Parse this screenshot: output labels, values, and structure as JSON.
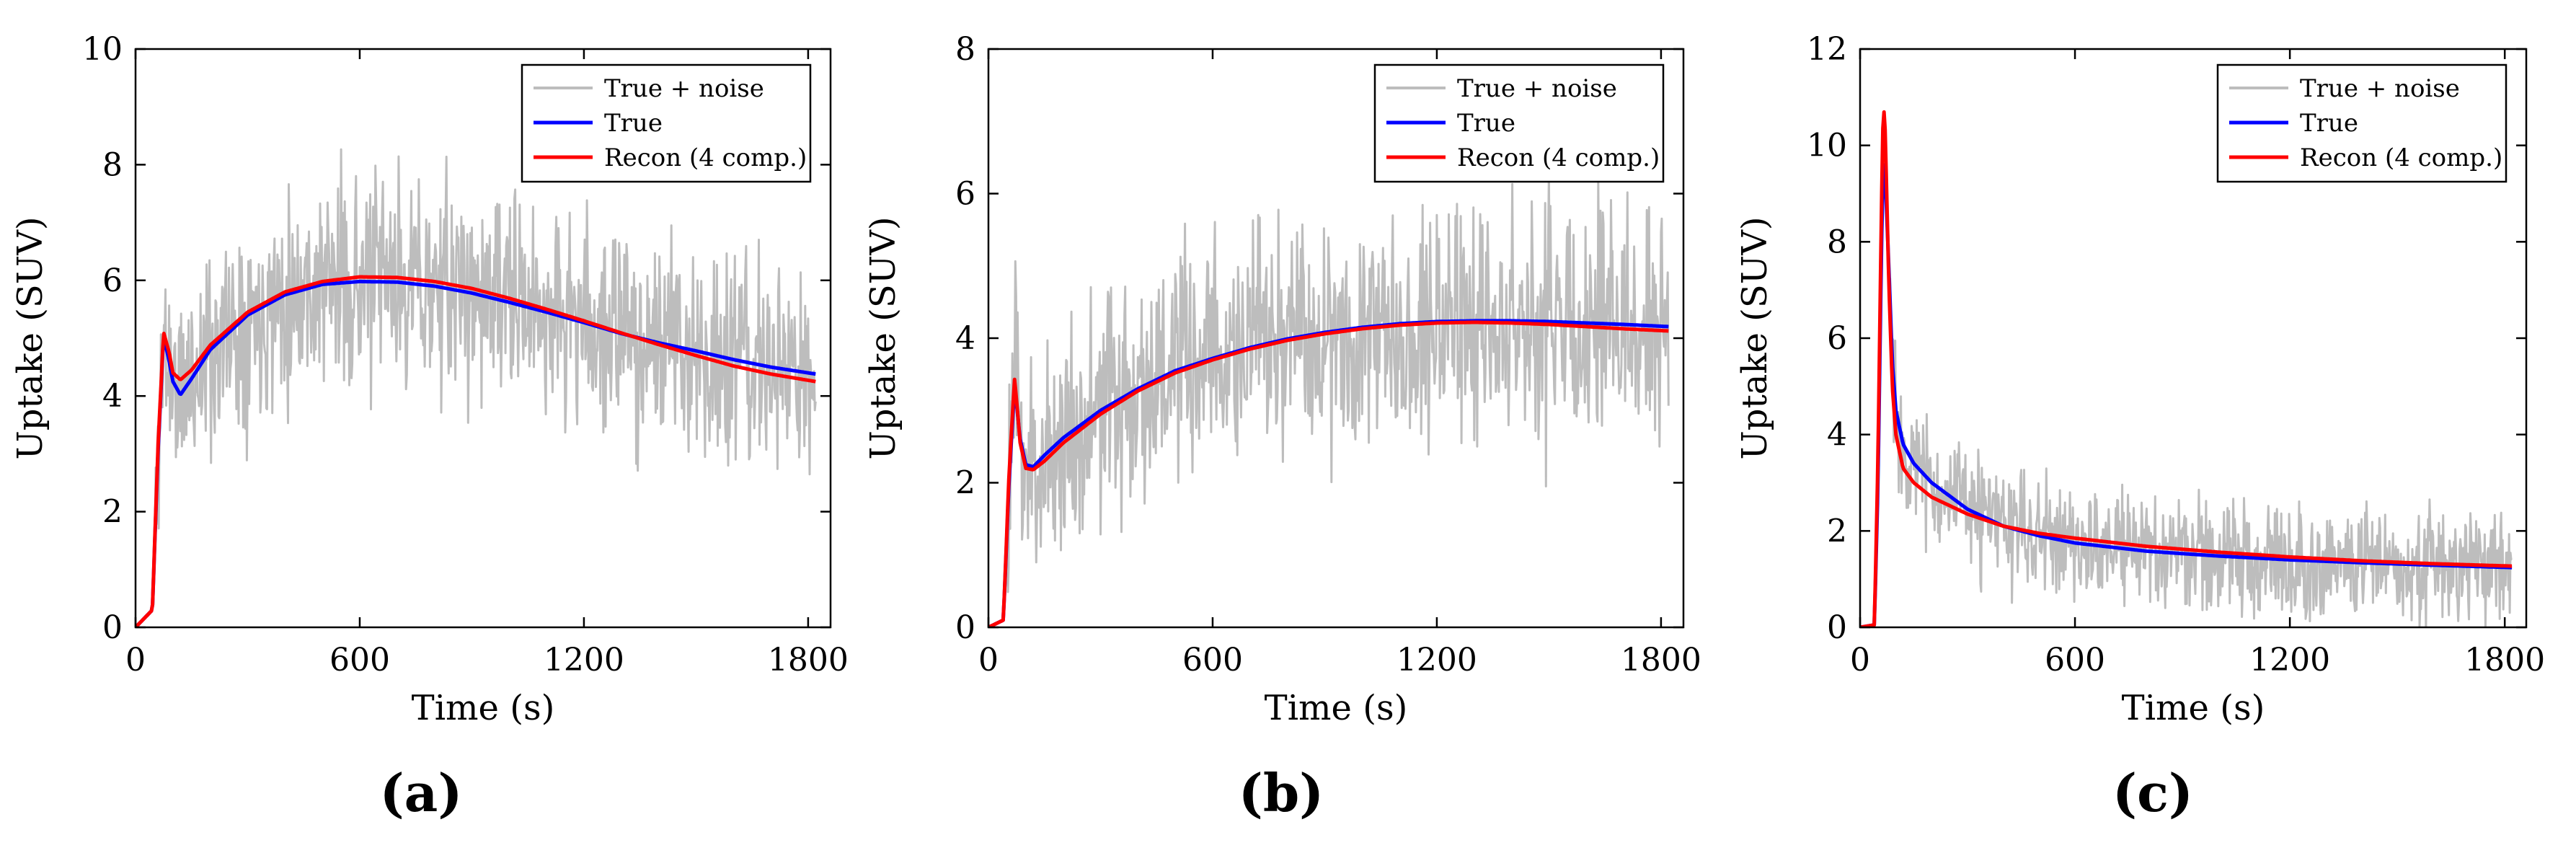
{
  "colors": {
    "noise": "#bdbdbd",
    "true": "#0000ff",
    "recon": "#ff0000",
    "axis": "#000000",
    "background": "#ffffff"
  },
  "captions": [
    "(a)",
    "(b)",
    "(c)"
  ],
  "chart_data": [
    {
      "type": "line",
      "title": "",
      "xlabel": "Time (s)",
      "ylabel": "Uptake (SUV)",
      "xlim": [
        0,
        1860
      ],
      "ylim": [
        0,
        10
      ],
      "xticks": [
        0,
        600,
        1200,
        1800
      ],
      "yticks": [
        0,
        2,
        4,
        6,
        8,
        10
      ],
      "legend_position": "top-right",
      "series": [
        {
          "name": "True + noise",
          "color": "#bdbdbd",
          "noise_amplitude": 1.1,
          "seed": 11,
          "x": [
            0,
            45,
            60,
            75,
            90,
            100,
            120,
            150,
            200,
            300,
            400,
            500,
            600,
            700,
            800,
            900,
            1000,
            1100,
            1200,
            1300,
            1400,
            1500,
            1600,
            1700,
            1820
          ],
          "y": [
            0,
            0.3,
            3.0,
            5.0,
            4.6,
            4.2,
            4.0,
            4.3,
            4.8,
            5.4,
            5.75,
            5.93,
            5.98,
            5.97,
            5.9,
            5.78,
            5.62,
            5.45,
            5.27,
            5.08,
            4.9,
            4.75,
            4.6,
            4.45,
            4.3
          ]
        },
        {
          "name": "True",
          "color": "#0000ff",
          "x": [
            0,
            45,
            60,
            75,
            90,
            100,
            120,
            150,
            200,
            300,
            400,
            500,
            600,
            700,
            800,
            900,
            1000,
            1100,
            1200,
            1300,
            1400,
            1500,
            1600,
            1700,
            1820
          ],
          "y": [
            0,
            0.3,
            3.0,
            5.05,
            4.6,
            4.25,
            4.02,
            4.3,
            4.8,
            5.4,
            5.75,
            5.93,
            5.98,
            5.97,
            5.9,
            5.78,
            5.62,
            5.45,
            5.27,
            5.08,
            4.92,
            4.78,
            4.63,
            4.5,
            4.38
          ]
        },
        {
          "name": "Recon (4 comp.)",
          "color": "#ff0000",
          "x": [
            0,
            45,
            60,
            75,
            90,
            100,
            120,
            150,
            200,
            300,
            400,
            500,
            600,
            700,
            800,
            900,
            1000,
            1100,
            1200,
            1300,
            1400,
            1500,
            1600,
            1700,
            1820
          ],
          "y": [
            0,
            0.3,
            3.1,
            5.1,
            4.75,
            4.4,
            4.28,
            4.45,
            4.88,
            5.45,
            5.8,
            5.98,
            6.06,
            6.05,
            5.98,
            5.86,
            5.69,
            5.5,
            5.3,
            5.09,
            4.89,
            4.7,
            4.52,
            4.38,
            4.25
          ]
        }
      ]
    },
    {
      "type": "line",
      "title": "",
      "xlabel": "Time (s)",
      "ylabel": "Uptake (SUV)",
      "xlim": [
        0,
        1860
      ],
      "ylim": [
        0,
        8
      ],
      "xticks": [
        0,
        600,
        1200,
        1800
      ],
      "yticks": [
        0,
        2,
        4,
        6,
        8
      ],
      "legend_position": "top-right",
      "series": [
        {
          "name": "True + noise",
          "color": "#bdbdbd",
          "noise_amplitude": 1.0,
          "seed": 23,
          "x": [
            0,
            40,
            55,
            70,
            85,
            100,
            120,
            150,
            200,
            300,
            400,
            500,
            600,
            700,
            800,
            900,
            1000,
            1100,
            1200,
            1300,
            1400,
            1500,
            1600,
            1700,
            1820
          ],
          "y": [
            0,
            0.1,
            2.0,
            3.4,
            2.6,
            2.25,
            2.2,
            2.35,
            2.6,
            3.0,
            3.3,
            3.55,
            3.72,
            3.87,
            3.99,
            4.08,
            4.15,
            4.2,
            4.23,
            4.24,
            4.24,
            4.22,
            4.2,
            4.17,
            4.15
          ]
        },
        {
          "name": "True",
          "color": "#0000ff",
          "x": [
            0,
            40,
            55,
            70,
            85,
            100,
            120,
            150,
            200,
            300,
            400,
            500,
            600,
            700,
            800,
            900,
            1000,
            1100,
            1200,
            1300,
            1400,
            1500,
            1600,
            1700,
            1820
          ],
          "y": [
            0,
            0.1,
            2.0,
            3.35,
            2.6,
            2.25,
            2.22,
            2.38,
            2.62,
            3.0,
            3.3,
            3.55,
            3.72,
            3.87,
            3.99,
            4.08,
            4.15,
            4.2,
            4.23,
            4.24,
            4.24,
            4.23,
            4.21,
            4.19,
            4.16
          ]
        },
        {
          "name": "Recon (4 comp.)",
          "color": "#ff0000",
          "x": [
            0,
            40,
            55,
            70,
            85,
            100,
            120,
            150,
            200,
            300,
            400,
            500,
            600,
            700,
            800,
            900,
            1000,
            1100,
            1200,
            1300,
            1400,
            1500,
            1600,
            1700,
            1820
          ],
          "y": [
            0,
            0.1,
            2.1,
            3.45,
            2.55,
            2.2,
            2.18,
            2.3,
            2.55,
            2.95,
            3.27,
            3.52,
            3.7,
            3.85,
            3.97,
            4.06,
            4.13,
            4.18,
            4.21,
            4.22,
            4.21,
            4.19,
            4.16,
            4.13,
            4.1
          ]
        }
      ]
    },
    {
      "type": "line",
      "title": "",
      "xlabel": "Time (s)",
      "ylabel": "Uptake (SUV)",
      "xlim": [
        0,
        1860
      ],
      "ylim": [
        0,
        12
      ],
      "xticks": [
        0,
        600,
        1200,
        1800
      ],
      "yticks": [
        0,
        2,
        4,
        6,
        8,
        10,
        12
      ],
      "legend_position": "top-right",
      "series": [
        {
          "name": "True + noise",
          "color": "#bdbdbd",
          "noise_amplitude": 0.75,
          "seed": 37,
          "x": [
            0,
            40,
            50,
            60,
            65,
            70,
            80,
            90,
            100,
            120,
            150,
            200,
            300,
            400,
            500,
            600,
            800,
            1000,
            1200,
            1400,
            1600,
            1820
          ],
          "y": [
            0,
            0.05,
            3.0,
            8.0,
            9.7,
            9.4,
            7.5,
            5.5,
            4.5,
            3.8,
            3.4,
            3.0,
            2.45,
            2.1,
            1.9,
            1.75,
            1.58,
            1.48,
            1.4,
            1.34,
            1.29,
            1.24
          ]
        },
        {
          "name": "True",
          "color": "#0000ff",
          "x": [
            0,
            40,
            50,
            60,
            65,
            70,
            80,
            90,
            100,
            120,
            150,
            200,
            300,
            400,
            500,
            600,
            800,
            1000,
            1200,
            1400,
            1600,
            1820
          ],
          "y": [
            0,
            0.05,
            3.0,
            8.0,
            9.7,
            9.4,
            7.5,
            5.5,
            4.5,
            3.8,
            3.4,
            3.0,
            2.45,
            2.1,
            1.9,
            1.75,
            1.58,
            1.48,
            1.4,
            1.34,
            1.29,
            1.24
          ]
        },
        {
          "name": "Recon (4 comp.)",
          "color": "#ff0000",
          "x": [
            0,
            40,
            50,
            60,
            65,
            70,
            80,
            90,
            100,
            120,
            150,
            200,
            300,
            400,
            500,
            600,
            800,
            1000,
            1200,
            1400,
            1600,
            1820
          ],
          "y": [
            0,
            0.05,
            3.5,
            8.8,
            10.9,
            10.3,
            7.2,
            5.0,
            4.0,
            3.3,
            3.0,
            2.7,
            2.35,
            2.1,
            1.95,
            1.85,
            1.68,
            1.56,
            1.46,
            1.38,
            1.32,
            1.27
          ]
        }
      ]
    }
  ]
}
